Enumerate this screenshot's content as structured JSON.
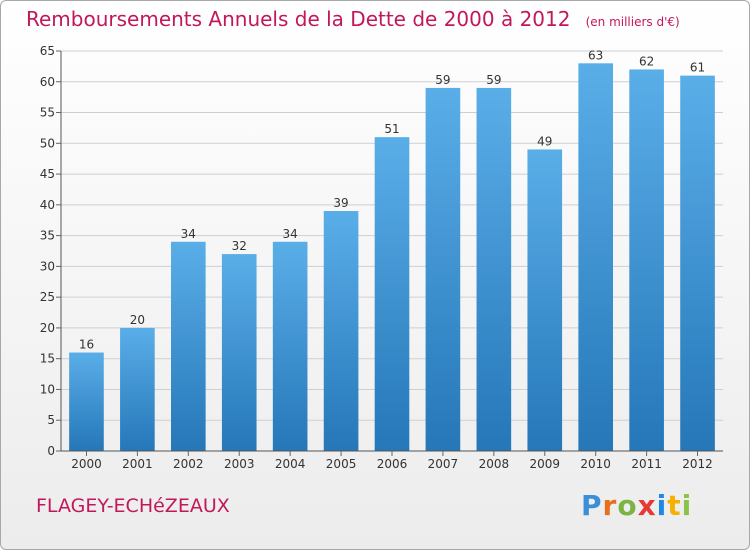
{
  "chart_data": {
    "type": "bar",
    "title": "Remboursements Annuels de la Dette de 2000 à 2012",
    "subtitle": "(en milliers d'€)",
    "categories": [
      "2000",
      "2001",
      "2002",
      "2003",
      "2004",
      "2005",
      "2006",
      "2007",
      "2008",
      "2009",
      "2010",
      "2011",
      "2012"
    ],
    "values": [
      16,
      20,
      34,
      32,
      34,
      39,
      51,
      59,
      59,
      49,
      63,
      62,
      61
    ],
    "ylim": [
      0,
      65
    ],
    "yticks": [
      0,
      5,
      10,
      15,
      20,
      25,
      30,
      35,
      40,
      45,
      50,
      55,
      60,
      65
    ],
    "grid": true,
    "bar_color_top": "#5aaee8",
    "bar_color_bottom": "#2577b8",
    "data_labels": true
  },
  "commune": "FLAGEY-ECHéZEAUX",
  "logo": {
    "letters": [
      "P",
      "r",
      "o",
      "x",
      "i",
      "t",
      "i"
    ],
    "colors": [
      "#3a8fd6",
      "#e8701a",
      "#7cb342",
      "#e53935",
      "#1e88e5",
      "#f6b100",
      "#8bc34a"
    ]
  },
  "colors": {
    "accent": "#c2185b",
    "grid": "#cfcfcf",
    "axis_text": "#333333"
  }
}
